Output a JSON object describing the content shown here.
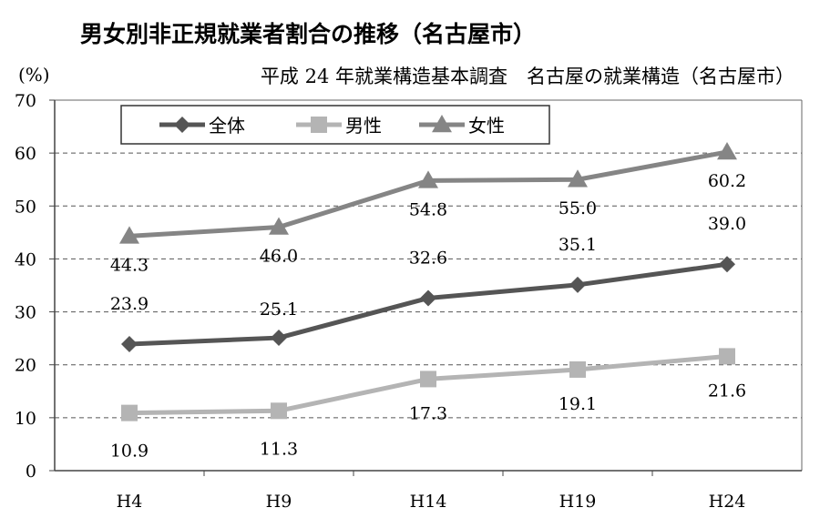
{
  "chart_data": {
    "type": "line",
    "title": "男女別非正規就業者割合の推移（名古屋市）",
    "subtitle": "平成 24 年就業構造基本調査　名古屋の就業構造（名古屋市）",
    "ylabel": "(%)",
    "xlabel": "",
    "ylim": [
      0,
      70
    ],
    "yticks": [
      0,
      10,
      20,
      30,
      40,
      50,
      60,
      70
    ],
    "categories": [
      "H4",
      "H9",
      "H14",
      "H19",
      "H24"
    ],
    "grid": true,
    "legend_position": "top-left",
    "series": [
      {
        "name": "全体",
        "values": [
          23.9,
          25.1,
          32.6,
          35.1,
          39.0
        ],
        "labels": [
          "23.9",
          "25.1",
          "32.6",
          "35.1",
          "39.0"
        ],
        "color": "#555555",
        "marker": "diamond"
      },
      {
        "name": "男性",
        "values": [
          10.9,
          11.3,
          17.3,
          19.1,
          21.6
        ],
        "labels": [
          "10.9",
          "11.3",
          "17.3",
          "19.1",
          "21.6"
        ],
        "color": "#b4b4b4",
        "marker": "square"
      },
      {
        "name": "女性",
        "values": [
          44.3,
          46.0,
          54.8,
          55.0,
          60.2
        ],
        "labels": [
          "44.3",
          "46.0",
          "54.8",
          "55.0",
          "60.2"
        ],
        "color": "#858585",
        "marker": "triangle"
      }
    ]
  }
}
